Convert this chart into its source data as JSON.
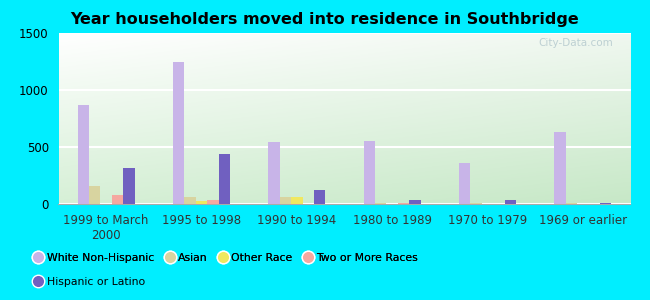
{
  "title": "Year householders moved into residence in Southbridge",
  "categories": [
    "1999 to March\n2000",
    "1995 to 1998",
    "1990 to 1994",
    "1980 to 1989",
    "1970 to 1979",
    "1969 or earlier"
  ],
  "series": {
    "White Non-Hispanic": [
      870,
      1250,
      540,
      555,
      360,
      635
    ],
    "Asian": [
      160,
      60,
      65,
      5,
      5,
      5
    ],
    "Other Race": [
      0,
      30,
      60,
      0,
      0,
      0
    ],
    "Two or More Races": [
      80,
      35,
      0,
      5,
      0,
      0
    ],
    "Hispanic or Latino": [
      320,
      440,
      120,
      35,
      35,
      5
    ]
  },
  "colors": {
    "White Non-Hispanic": "#c8b4e8",
    "Asian": "#d8d4a0",
    "Other Race": "#f0e860",
    "Two or More Races": "#f5a8a0",
    "Hispanic or Latino": "#7060c0"
  },
  "ylim": [
    0,
    1500
  ],
  "yticks": [
    0,
    500,
    1000,
    1500
  ],
  "background_outer": "#00eeff",
  "background_inner_top": "#f0f8f0",
  "background_inner_bottom": "#c8eac8",
  "grid_color": "#ffffff",
  "watermark": "City-Data.com"
}
